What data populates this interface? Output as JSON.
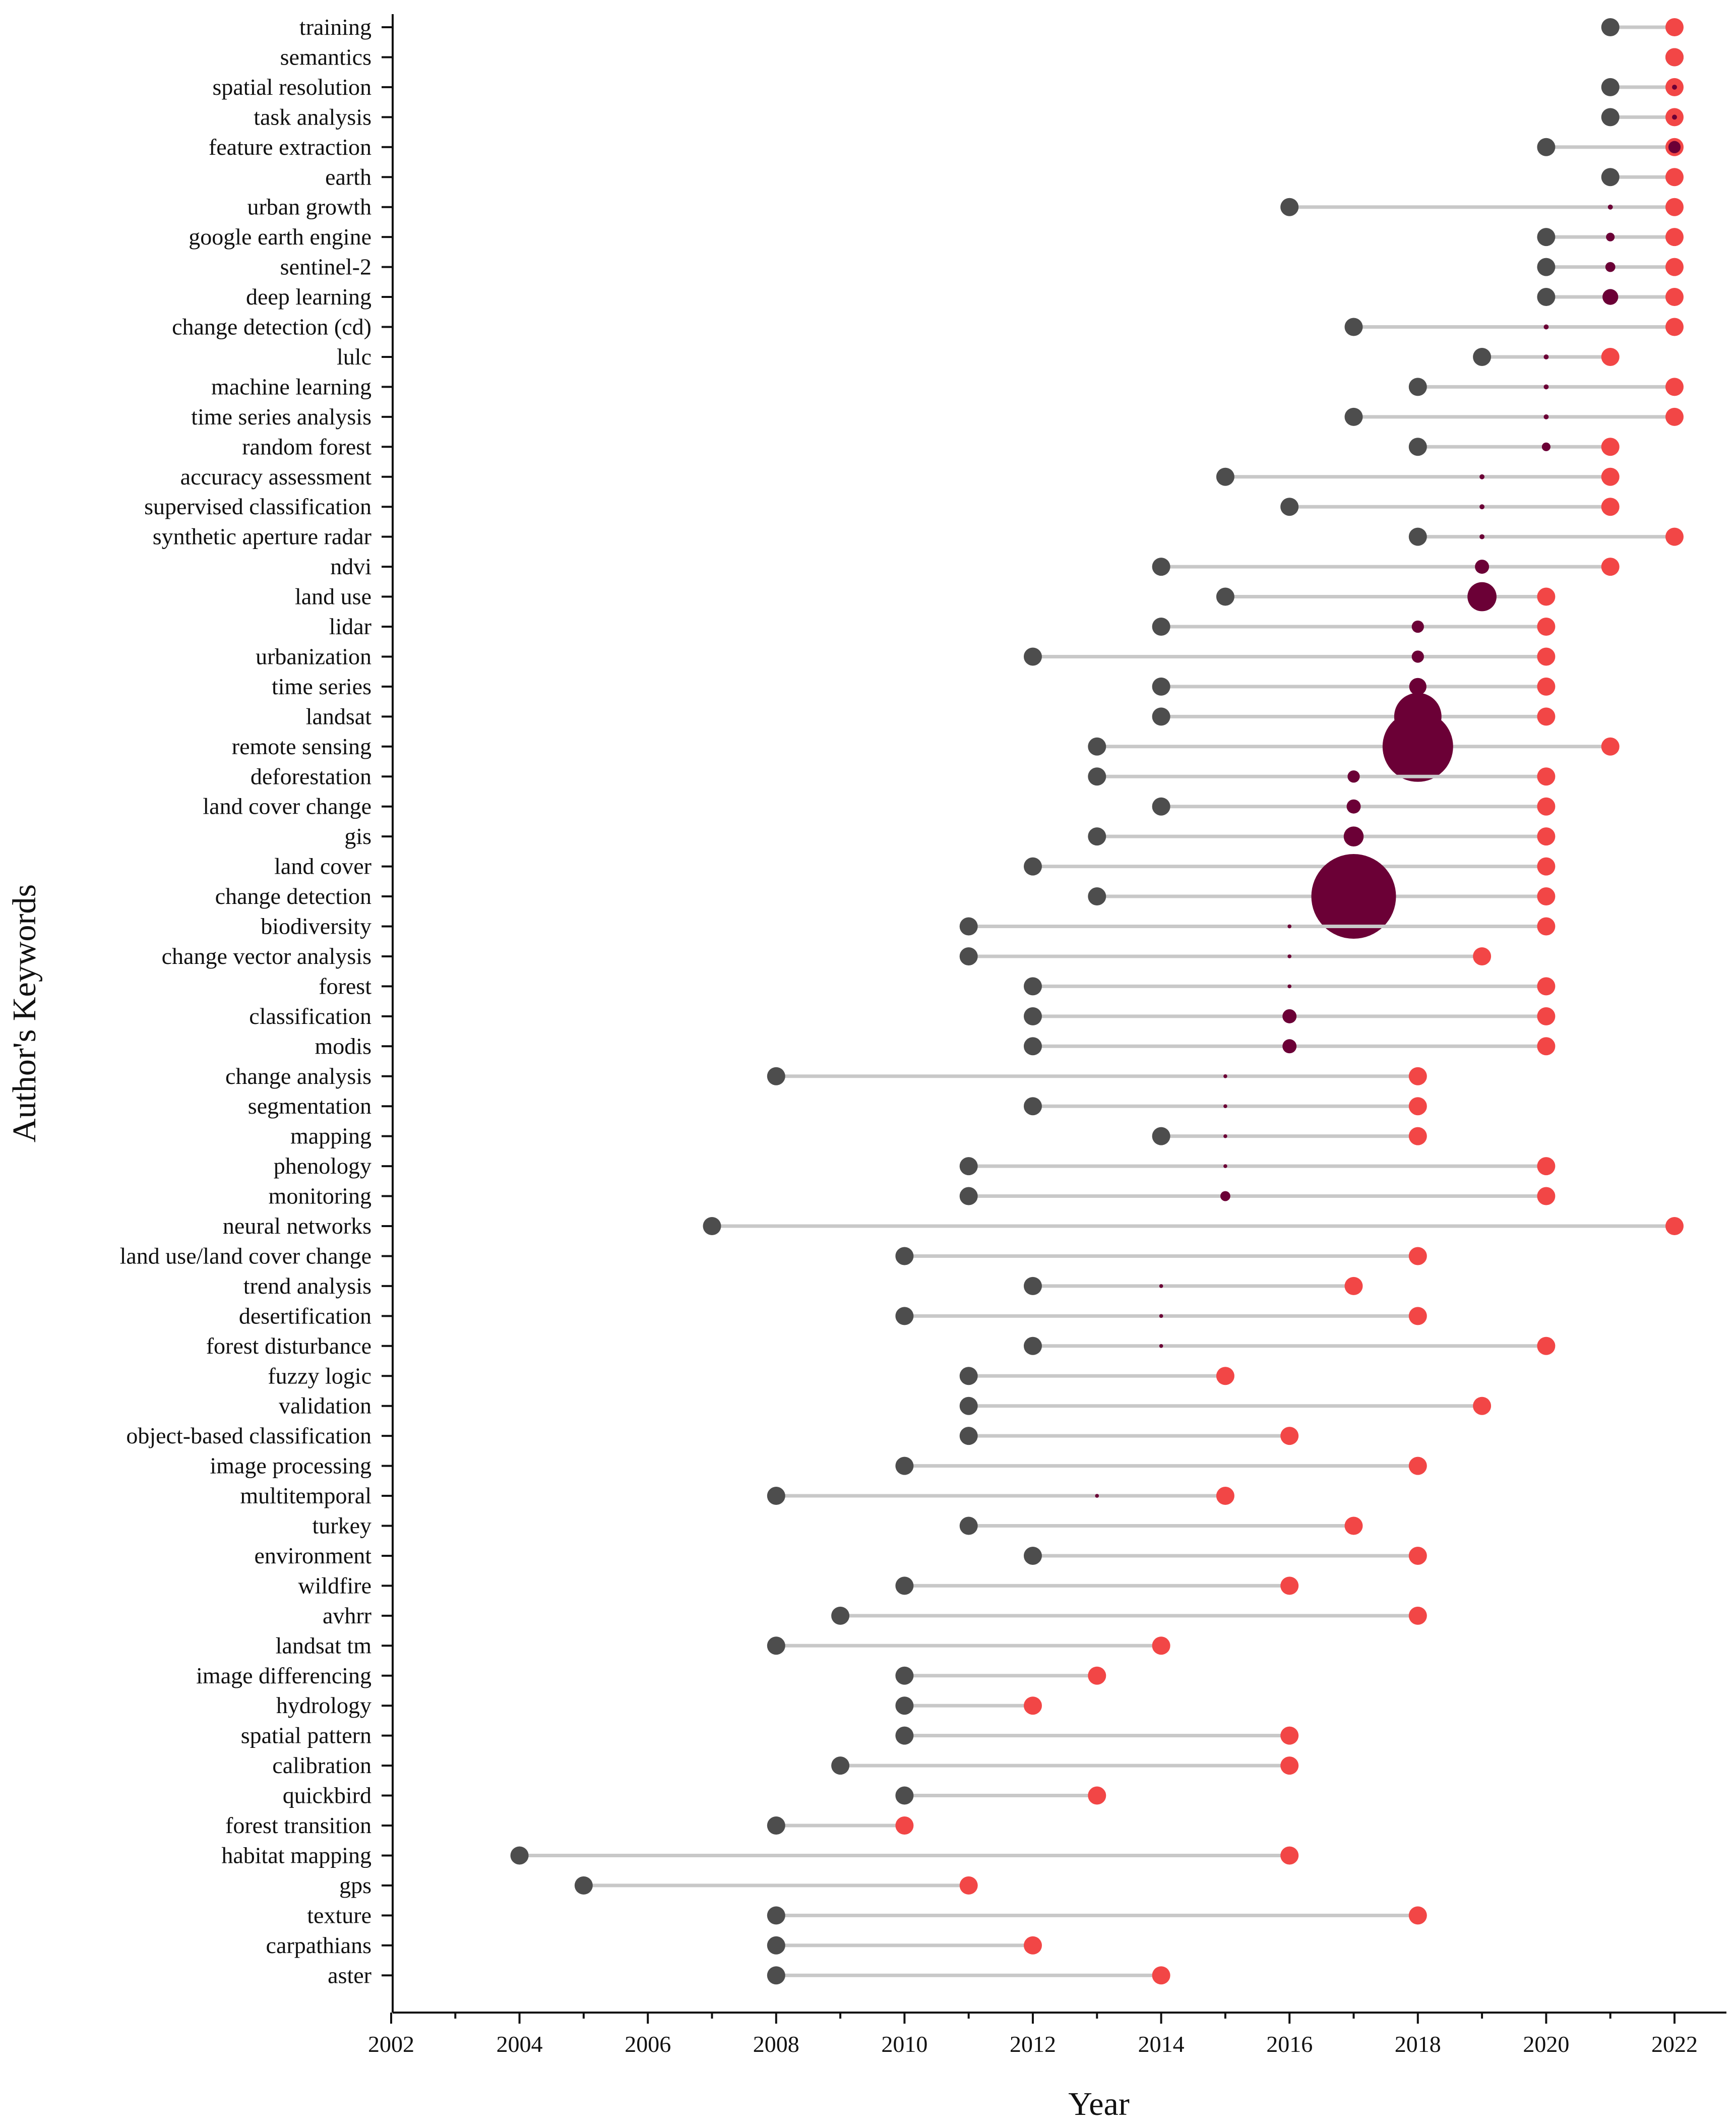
{
  "chart_data": {
    "type": "dot-range",
    "xlabel": "Year",
    "ylabel": "Author's Keywords",
    "xlim": [
      2002,
      2023
    ],
    "xticks": [
      2002,
      2004,
      2006,
      2008,
      2010,
      2012,
      2014,
      2016,
      2018,
      2020,
      2022
    ],
    "colors": {
      "start": "#4d4d4d",
      "end": "#f24646",
      "median": "#6b0036",
      "line": "#c8c8c8",
      "axis": "#111111"
    },
    "keywords": [
      {
        "label": "training",
        "start": 2021,
        "end": 2022,
        "median": 2022,
        "freq": 0
      },
      {
        "label": "semantics",
        "start": 2022,
        "end": 2022,
        "median": 2022,
        "freq": 0
      },
      {
        "label": "spatial resolution",
        "start": 2021,
        "end": 2022,
        "median": 2022,
        "freq": 0.5
      },
      {
        "label": "task analysis",
        "start": 2021,
        "end": 2022,
        "median": 2022,
        "freq": 0.5
      },
      {
        "label": "feature extraction",
        "start": 2020,
        "end": 2022,
        "median": 2022,
        "freq": 3
      },
      {
        "label": "earth",
        "start": 2021,
        "end": 2022,
        "median": 2021,
        "freq": 0
      },
      {
        "label": "urban growth",
        "start": 2016,
        "end": 2022,
        "median": 2021,
        "freq": 0.5
      },
      {
        "label": "google earth engine",
        "start": 2020,
        "end": 2022,
        "median": 2021,
        "freq": 1.5
      },
      {
        "label": "sentinel-2",
        "start": 2020,
        "end": 2022,
        "median": 2021,
        "freq": 2
      },
      {
        "label": "deep learning",
        "start": 2020,
        "end": 2022,
        "median": 2021,
        "freq": 5
      },
      {
        "label": "change detection (cd)",
        "start": 2017,
        "end": 2022,
        "median": 2020,
        "freq": 0.5
      },
      {
        "label": "lulc",
        "start": 2019,
        "end": 2021,
        "median": 2020,
        "freq": 0.5
      },
      {
        "label": "machine learning",
        "start": 2018,
        "end": 2022,
        "median": 2020,
        "freq": 0.5
      },
      {
        "label": "time series analysis",
        "start": 2017,
        "end": 2022,
        "median": 2020,
        "freq": 0.5
      },
      {
        "label": "random forest",
        "start": 2018,
        "end": 2021,
        "median": 2020,
        "freq": 1.5
      },
      {
        "label": "accuracy assessment",
        "start": 2015,
        "end": 2021,
        "median": 2019,
        "freq": 0.5
      },
      {
        "label": "supervised classification",
        "start": 2016,
        "end": 2021,
        "median": 2019,
        "freq": 0.5
      },
      {
        "label": "synthetic aperture radar",
        "start": 2018,
        "end": 2022,
        "median": 2019,
        "freq": 0.5
      },
      {
        "label": "ndvi",
        "start": 2014,
        "end": 2021,
        "median": 2019,
        "freq": 4
      },
      {
        "label": "land use",
        "start": 2015,
        "end": 2020,
        "median": 2019,
        "freq": 17
      },
      {
        "label": "lidar",
        "start": 2014,
        "end": 2020,
        "median": 2018,
        "freq": 3
      },
      {
        "label": "urbanization",
        "start": 2012,
        "end": 2020,
        "median": 2018,
        "freq": 3
      },
      {
        "label": "time series",
        "start": 2014,
        "end": 2020,
        "median": 2018,
        "freq": 6
      },
      {
        "label": "landsat",
        "start": 2014,
        "end": 2020,
        "median": 2018,
        "freq": 45
      },
      {
        "label": "remote sensing",
        "start": 2013,
        "end": 2021,
        "median": 2018,
        "freq": 100
      },
      {
        "label": "deforestation",
        "start": 2013,
        "end": 2020,
        "median": 2017,
        "freq": 3
      },
      {
        "label": "land cover change",
        "start": 2014,
        "end": 2020,
        "median": 2017,
        "freq": 4
      },
      {
        "label": "gis",
        "start": 2013,
        "end": 2020,
        "median": 2017,
        "freq": 8
      },
      {
        "label": "land cover",
        "start": 2012,
        "end": 2020,
        "median": 2017,
        "freq": 0.5
      },
      {
        "label": "change detection",
        "start": 2013,
        "end": 2020,
        "median": 2017,
        "freq": 144
      },
      {
        "label": "biodiversity",
        "start": 2011,
        "end": 2020,
        "median": 2016,
        "freq": 0.3
      },
      {
        "label": "change vector analysis",
        "start": 2011,
        "end": 2019,
        "median": 2016,
        "freq": 0.3
      },
      {
        "label": "forest",
        "start": 2012,
        "end": 2020,
        "median": 2016,
        "freq": 0.3
      },
      {
        "label": "classification",
        "start": 2012,
        "end": 2020,
        "median": 2016,
        "freq": 4
      },
      {
        "label": "modis",
        "start": 2012,
        "end": 2020,
        "median": 2016,
        "freq": 4
      },
      {
        "label": "change analysis",
        "start": 2008,
        "end": 2018,
        "median": 2015,
        "freq": 0.3
      },
      {
        "label": "segmentation",
        "start": 2012,
        "end": 2018,
        "median": 2015,
        "freq": 0.3
      },
      {
        "label": "mapping",
        "start": 2014,
        "end": 2018,
        "median": 2015,
        "freq": 0.3
      },
      {
        "label": "phenology",
        "start": 2011,
        "end": 2020,
        "median": 2015,
        "freq": 0.3
      },
      {
        "label": "monitoring",
        "start": 2011,
        "end": 2020,
        "median": 2015,
        "freq": 2
      },
      {
        "label": "neural networks",
        "start": 2007,
        "end": 2022,
        "median": 2014,
        "freq": 0
      },
      {
        "label": "land use/land cover change",
        "start": 2010,
        "end": 2018,
        "median": 2014,
        "freq": 0
      },
      {
        "label": "trend analysis",
        "start": 2012,
        "end": 2017,
        "median": 2014,
        "freq": 0.3
      },
      {
        "label": "desertification",
        "start": 2010,
        "end": 2018,
        "median": 2014,
        "freq": 0.3
      },
      {
        "label": "forest disturbance",
        "start": 2012,
        "end": 2020,
        "median": 2014,
        "freq": 0.3
      },
      {
        "label": "fuzzy logic",
        "start": 2011,
        "end": 2015,
        "median": 2013,
        "freq": 0
      },
      {
        "label": "validation",
        "start": 2011,
        "end": 2019,
        "median": 2013,
        "freq": 0
      },
      {
        "label": "object-based classification",
        "start": 2011,
        "end": 2016,
        "median": 2013,
        "freq": 0
      },
      {
        "label": "image processing",
        "start": 2010,
        "end": 2018,
        "median": 2013,
        "freq": 0
      },
      {
        "label": "multitemporal",
        "start": 2008,
        "end": 2015,
        "median": 2013,
        "freq": 0.3
      },
      {
        "label": "turkey",
        "start": 2011,
        "end": 2017,
        "median": 2013,
        "freq": 0
      },
      {
        "label": "environment",
        "start": 2012,
        "end": 2018,
        "median": 2012,
        "freq": 0
      },
      {
        "label": "wildfire",
        "start": 2010,
        "end": 2016,
        "median": 2012,
        "freq": 0
      },
      {
        "label": "avhrr",
        "start": 2009,
        "end": 2018,
        "median": 2012,
        "freq": 0
      },
      {
        "label": "landsat tm",
        "start": 2008,
        "end": 2014,
        "median": 2012,
        "freq": 0
      },
      {
        "label": "image differencing",
        "start": 2010,
        "end": 2013,
        "median": 2011,
        "freq": 0
      },
      {
        "label": "hydrology",
        "start": 2010,
        "end": 2012,
        "median": 2011,
        "freq": 0
      },
      {
        "label": "spatial pattern",
        "start": 2010,
        "end": 2016,
        "median": 2011,
        "freq": 0
      },
      {
        "label": "calibration",
        "start": 2009,
        "end": 2016,
        "median": 2011,
        "freq": 0
      },
      {
        "label": "quickbird",
        "start": 2010,
        "end": 2013,
        "median": 2011,
        "freq": 0
      },
      {
        "label": "forest transition",
        "start": 2008,
        "end": 2010,
        "median": 2009,
        "freq": 0
      },
      {
        "label": "habitat mapping",
        "start": 2004,
        "end": 2016,
        "median": 2010,
        "freq": 0
      },
      {
        "label": "gps",
        "start": 2005,
        "end": 2011,
        "median": 2010,
        "freq": 0
      },
      {
        "label": "texture",
        "start": 2008,
        "end": 2018,
        "median": 2010,
        "freq": 0
      },
      {
        "label": "carpathians",
        "start": 2008,
        "end": 2012,
        "median": 2009,
        "freq": 0
      },
      {
        "label": "aster",
        "start": 2008,
        "end": 2014,
        "median": 2009,
        "freq": 0
      }
    ]
  }
}
